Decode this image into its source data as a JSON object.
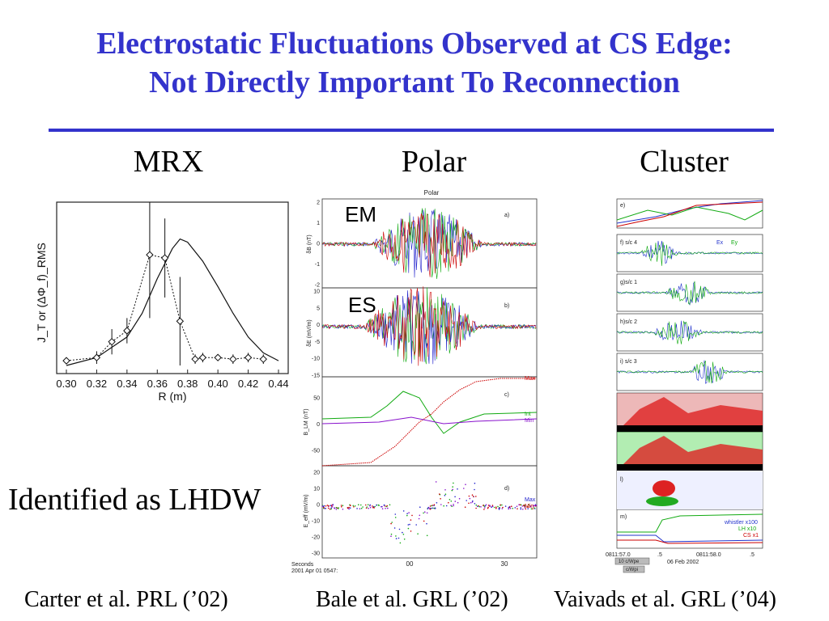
{
  "slide": {
    "title_line1": "Electrostatic Fluctuations Observed at CS Edge:",
    "title_line2": "Not Directly Important To Reconnection",
    "accent_color": "#3333cc"
  },
  "columns": [
    {
      "label": "MRX"
    },
    {
      "label": "Polar"
    },
    {
      "label": "Cluster"
    }
  ],
  "mrx_chart": {
    "chart_data": {
      "type": "scatter",
      "xlabel": "R (m)",
      "ylabel": "J_T or (ΔΦ_f)_RMS",
      "xlim": [
        0.3,
        0.44
      ],
      "x_ticks": [
        "0.30",
        "0.32",
        "0.34",
        "0.36",
        "0.38",
        "0.40",
        "0.42",
        "0.44"
      ],
      "series": [
        {
          "x": [
            0.3,
            0.32,
            0.33,
            0.34,
            0.355,
            0.365,
            0.375,
            0.385,
            0.39,
            0.4,
            0.41,
            0.42,
            0.43
          ],
          "y": [
            0.03,
            0.05,
            0.15,
            0.22,
            0.7,
            0.68,
            0.28,
            0.04,
            0.05,
            0.05,
            0.04,
            0.05,
            0.04
          ]
        },
        {
          "x": [
            0.3,
            0.32,
            0.34,
            0.35,
            0.36,
            0.37,
            0.375,
            0.38,
            0.39,
            0.4,
            0.41,
            0.42,
            0.43,
            0.44
          ],
          "y": [
            0.0,
            0.05,
            0.18,
            0.33,
            0.55,
            0.74,
            0.8,
            0.78,
            0.66,
            0.5,
            0.33,
            0.18,
            0.08,
            0.03
          ]
        }
      ]
    }
  },
  "polar_panel": {
    "header": "Polar",
    "panel_letters": [
      "a)",
      "b)",
      "c)",
      "d)"
    ],
    "em_label": "EM",
    "es_label": "ES",
    "ylabels": [
      "δB (nT)",
      "δE (mV/m)",
      "B_LM (nT)",
      "E_eff (mV/m)"
    ],
    "a_ticks": [
      "2",
      "1",
      "0",
      "-1",
      "-2"
    ],
    "b_ticks": [
      "10",
      "5",
      "0",
      "-5",
      "-10",
      "-15"
    ],
    "c_ticks": [
      "50",
      "0",
      "-50"
    ],
    "d_ticks": [
      "20",
      "10",
      "0",
      "-10",
      "-20",
      "-30"
    ],
    "x_ticks": [
      "00",
      "30"
    ],
    "legend_c": [
      "Max",
      "Int",
      "Min"
    ],
    "legend_d": [
      "Max",
      "Min"
    ],
    "footer_line1": "Seconds",
    "footer_line2": "2001 Apr 01 0547:"
  },
  "cluster_panel": {
    "panel_labels": [
      "e)",
      "f) s/c 4",
      "g)s/c 1",
      "h)s/c 2",
      "i) s/c 3",
      "l)",
      "m)"
    ],
    "legend_f": [
      "Ex",
      "Ey"
    ],
    "legend_m": [
      "whistler x100",
      "LH x10",
      "CS x1"
    ],
    "time_labels": [
      "0811:57.0",
      ".5",
      "0811:58.0",
      ".5"
    ],
    "date_label": "06   Feb   2002",
    "scale_labels": [
      "10 c/Wpe",
      "c/Wpi"
    ]
  },
  "captions": {
    "identified": "Identified as LHDW"
  },
  "citations": {
    "carter": "Carter et al. PRL (’02)",
    "bale": "Bale et al. GRL (’02)",
    "vaivads": "Vaivads et al. GRL (’04)"
  }
}
